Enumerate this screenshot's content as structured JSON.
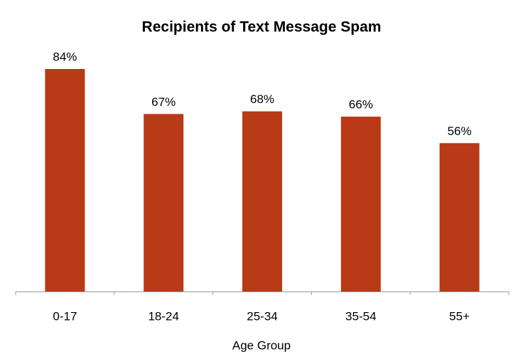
{
  "chart_data": {
    "type": "bar",
    "title": "Recipients of Text Message Spam",
    "x_label": "Age Group",
    "categories": [
      "0-17",
      "18-24",
      "25-34",
      "35-54",
      "55+"
    ],
    "values": [
      84,
      67,
      68,
      66,
      56
    ],
    "value_labels": [
      "84%",
      "67%",
      "68%",
      "66%",
      "56%"
    ],
    "color": "#b83a16"
  }
}
